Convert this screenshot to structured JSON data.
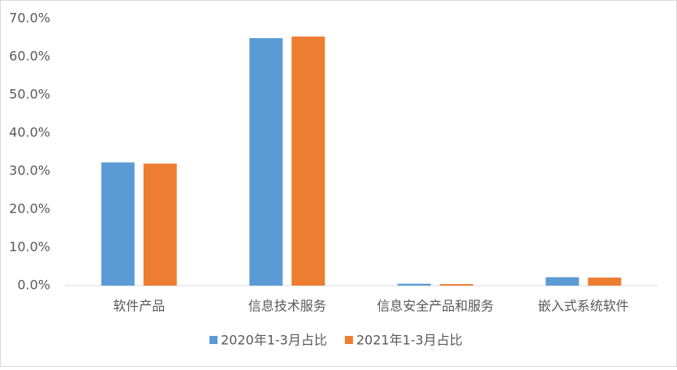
{
  "chart_data": {
    "type": "bar",
    "categories": [
      "软件产品",
      "信息技术服务",
      "信息安全产品和服务",
      "嵌入式系统软件"
    ],
    "series": [
      {
        "name": "2020年1-3月占比",
        "color": "#5b9bd5",
        "values": [
          32.3,
          64.9,
          0.5,
          2.2
        ]
      },
      {
        "name": "2021年1-3月占比",
        "color": "#ed7d31",
        "values": [
          32.0,
          65.3,
          0.4,
          2.1
        ]
      }
    ],
    "ylim": [
      0,
      70
    ],
    "yticks": [
      {
        "value": 0,
        "label": "0.0%"
      },
      {
        "value": 10,
        "label": "10.0%"
      },
      {
        "value": 20,
        "label": "20.0%"
      },
      {
        "value": 30,
        "label": "30.0%"
      },
      {
        "value": 40,
        "label": "40.0%"
      },
      {
        "value": 50,
        "label": "50.0%"
      },
      {
        "value": 60,
        "label": "60.0%"
      },
      {
        "value": 70,
        "label": "70.0%"
      }
    ],
    "legend": "bottom"
  }
}
